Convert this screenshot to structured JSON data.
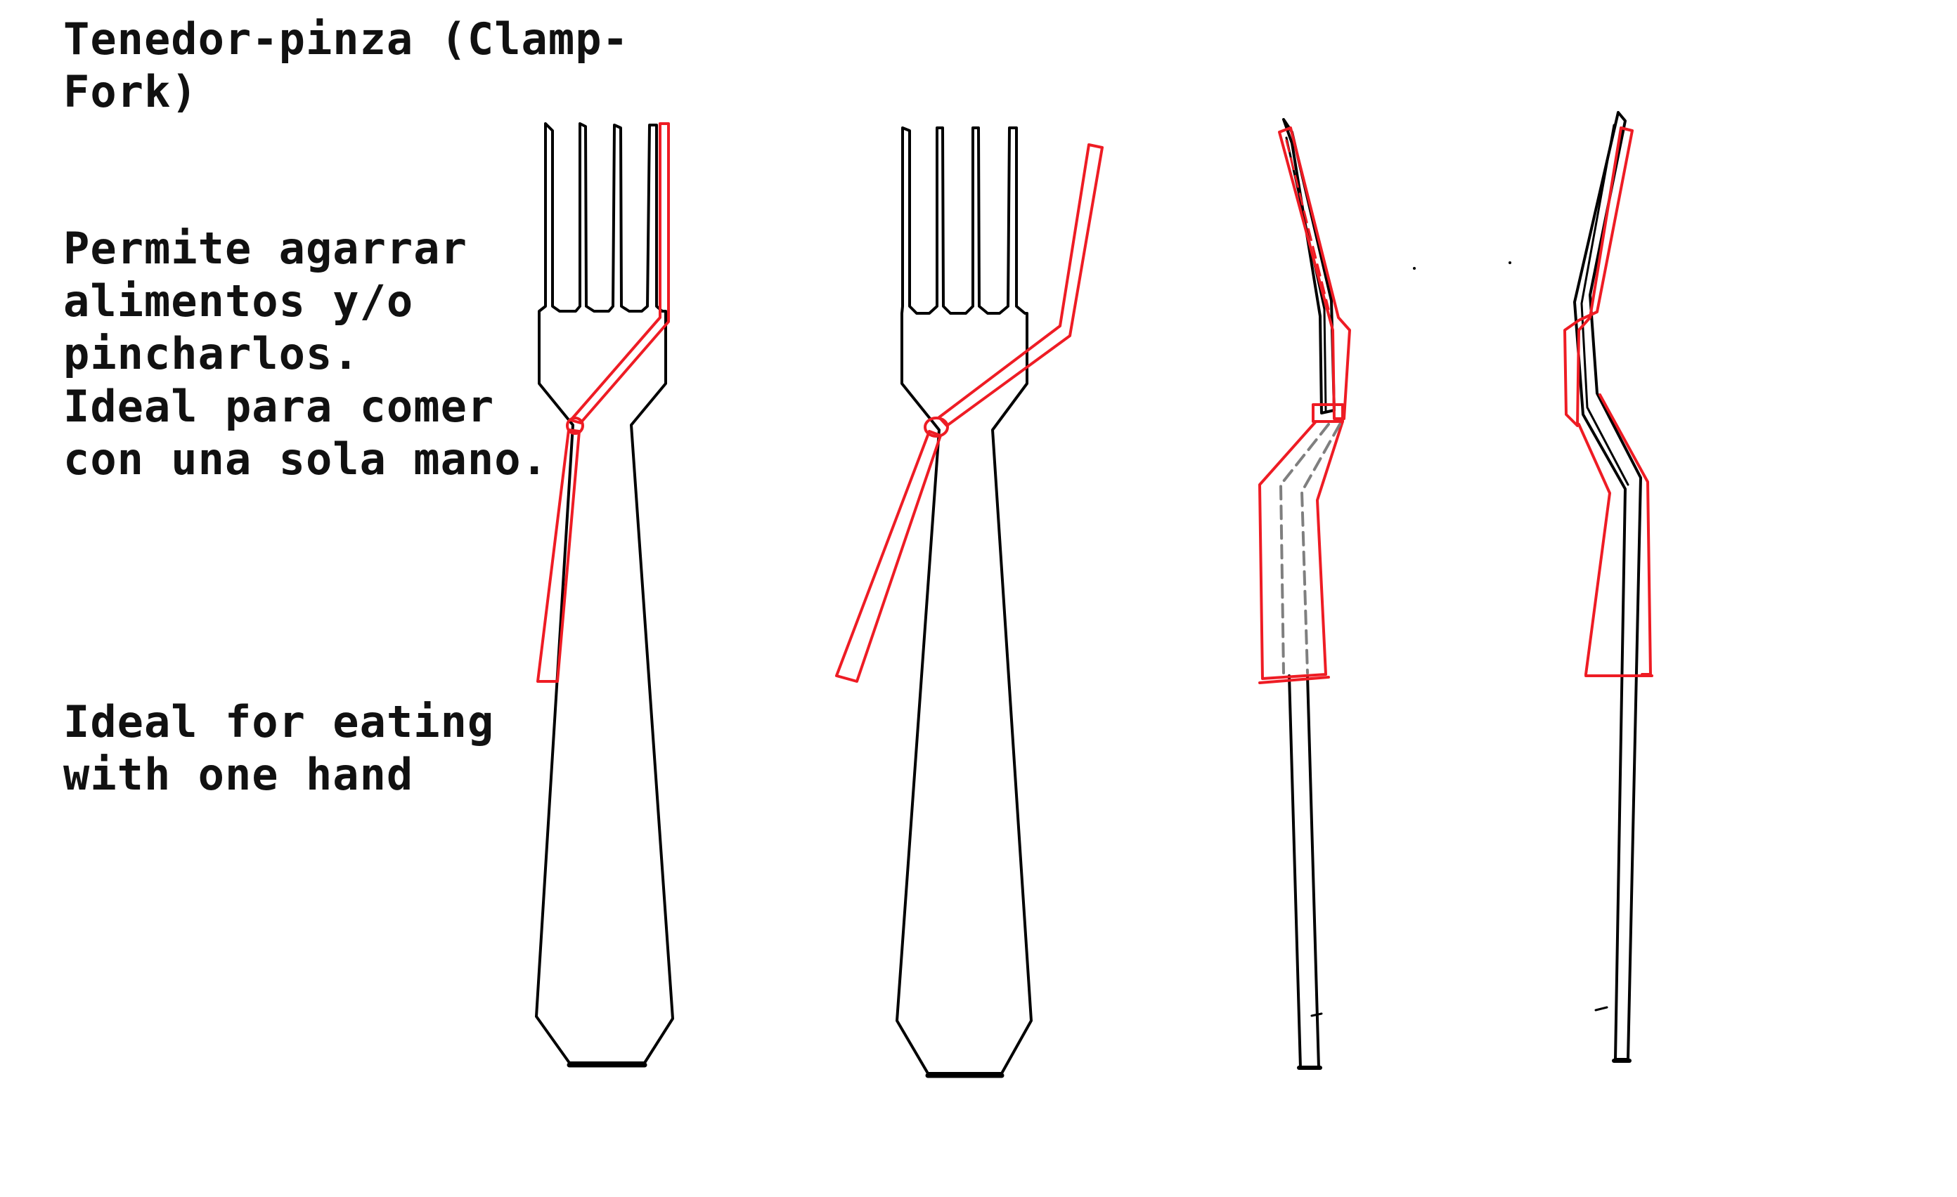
{
  "title": {
    "lines": [
      "Tenedor-pinza (Clamp-",
      "Fork)"
    ]
  },
  "description_es": {
    "lines": [
      "Permite agarrar",
      "alimentos y/o",
      "pincharlos.",
      "Ideal para comer",
      "con una sola mano."
    ]
  },
  "description_en": {
    "lines": [
      "Ideal for eating",
      "with one hand"
    ]
  },
  "colors": {
    "outline": "#000000",
    "clamp": "#ee1c24",
    "hidden_line": "#7f7f7f",
    "background": "#ffffff"
  }
}
